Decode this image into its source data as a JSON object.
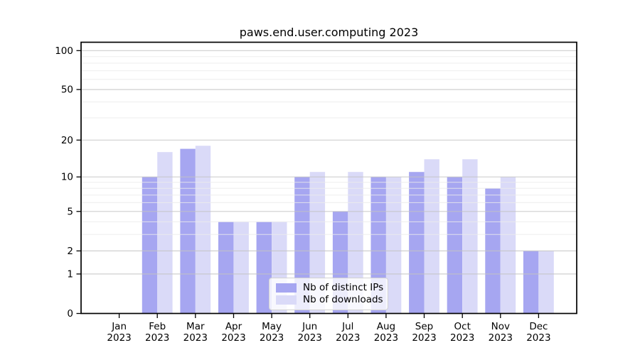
{
  "title": "paws.end.user.computing 2023",
  "chart_data": {
    "type": "bar",
    "title": "paws.end.user.computing 2023",
    "yscale": "log1p",
    "ylim": [
      0,
      116
    ],
    "yticks": [
      100,
      50,
      20,
      10,
      5,
      2,
      1,
      0
    ],
    "minor_yticks": [
      3,
      4,
      6,
      7,
      8,
      9,
      30,
      40,
      60,
      70,
      80,
      90
    ],
    "grid": true,
    "categories": [
      "Jan",
      "Feb",
      "Mar",
      "Apr",
      "May",
      "Jun",
      "Jul",
      "Aug",
      "Sep",
      "Oct",
      "Nov",
      "Dec"
    ],
    "year_label": "2023",
    "series": [
      {
        "name": "Nb of distinct IPs",
        "color": "#a6a6f1",
        "values": [
          0,
          10,
          17,
          4,
          4,
          10,
          5,
          10,
          11,
          10,
          8,
          2
        ]
      },
      {
        "name": "Nb of downloads",
        "color": "#dadaf8",
        "values": [
          0,
          16,
          18,
          4,
          4,
          11,
          11,
          10,
          14,
          14,
          10,
          2
        ]
      }
    ],
    "legend_position": "bottom-center",
    "colors": {
      "axis": "#000000",
      "major_grid": "#c3c3c3",
      "minor_grid": "#ebebeb",
      "tick_label": "#000000"
    }
  }
}
